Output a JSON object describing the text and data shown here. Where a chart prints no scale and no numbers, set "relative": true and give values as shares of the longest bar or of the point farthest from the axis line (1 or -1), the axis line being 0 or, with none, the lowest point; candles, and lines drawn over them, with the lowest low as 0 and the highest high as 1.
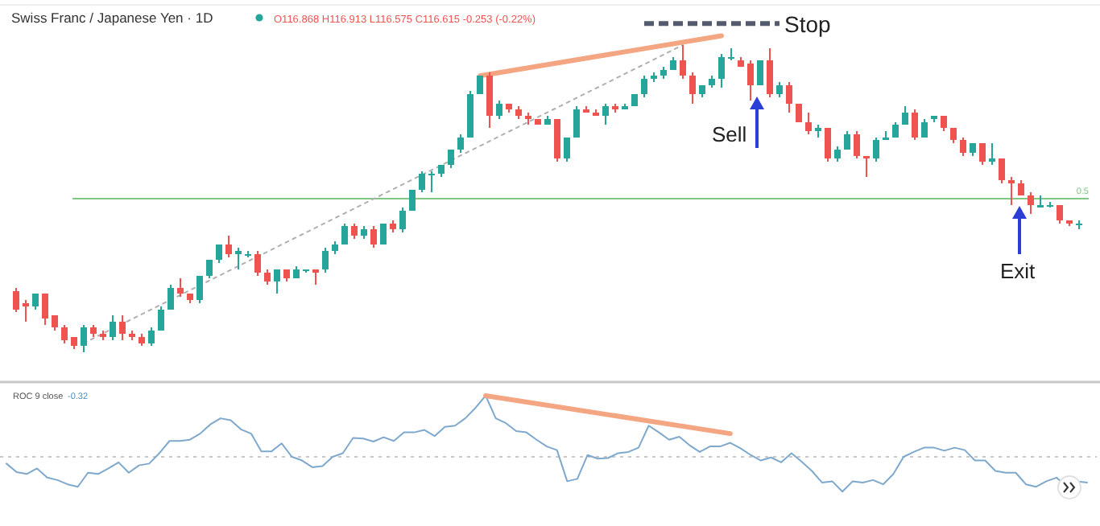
{
  "chart_data": [
    {
      "type": "candlestick",
      "title": "Swiss Franc / Japanese Yen · 1D",
      "subtitle": "O116.868 H116.913 L116.575 C116.615 -0.253 (-0.22%)",
      "relative": true,
      "categories": [
        null,
        null,
        null,
        null,
        null,
        null,
        null,
        null,
        null,
        null,
        null,
        null,
        null,
        null,
        null,
        null,
        null,
        null,
        null,
        null,
        null,
        null,
        null,
        null,
        null,
        null,
        null,
        null,
        null,
        null,
        null,
        null,
        null,
        null,
        null,
        null,
        null,
        null,
        null,
        null,
        null,
        null,
        null,
        null,
        null,
        null,
        null,
        null,
        null,
        null,
        null,
        null,
        null,
        null,
        null,
        null,
        null,
        null,
        null,
        null,
        null,
        null,
        null,
        null,
        null,
        null,
        null,
        null,
        null,
        null,
        null,
        null,
        null,
        null,
        null,
        null,
        null,
        null,
        null,
        null,
        null,
        null,
        null,
        null,
        null,
        null,
        null,
        null,
        null,
        null,
        null,
        null,
        null,
        null,
        null,
        null,
        null,
        null,
        null,
        null,
        null,
        null,
        null,
        null,
        null,
        null,
        null,
        null,
        null,
        null,
        null
      ],
      "ohlc": [
        [
          0.2,
          0.21,
          0.13,
          0.14
        ],
        [
          0.16,
          0.17,
          0.1,
          0.15
        ],
        [
          0.15,
          0.19,
          0.14,
          0.19
        ],
        [
          0.19,
          0.19,
          0.09,
          0.11
        ],
        [
          0.12,
          0.12,
          0.07,
          0.08
        ],
        [
          0.08,
          0.09,
          0.03,
          0.04
        ],
        [
          0.05,
          0.05,
          0.01,
          0.02
        ],
        [
          0.02,
          0.09,
          0,
          0.08
        ],
        [
          0.08,
          0.09,
          0.05,
          0.06
        ],
        [
          0.06,
          0.07,
          0.04,
          0.05
        ],
        [
          0.05,
          0.12,
          0.04,
          0.1
        ],
        [
          0.1,
          0.12,
          0.04,
          0.06
        ],
        [
          0.06,
          0.07,
          0.04,
          0.05
        ],
        [
          0.05,
          0.06,
          0.02,
          0.03
        ],
        [
          0.03,
          0.08,
          0.02,
          0.07
        ],
        [
          0.07,
          0.15,
          0.07,
          0.14
        ],
        [
          0.14,
          0.22,
          0.14,
          0.21
        ],
        [
          0.21,
          0.24,
          0.18,
          0.19
        ],
        [
          0.19,
          0.19,
          0.16,
          0.17
        ],
        [
          0.17,
          0.25,
          0.16,
          0.25
        ],
        [
          0.25,
          0.3,
          0.24,
          0.3
        ],
        [
          0.3,
          0.35,
          0.29,
          0.35
        ],
        [
          0.35,
          0.38,
          0.31,
          0.32
        ],
        [
          0.32,
          0.34,
          0.27,
          0.33
        ],
        [
          0.32,
          0.33,
          0.31,
          0.32
        ],
        [
          0.32,
          0.33,
          0.25,
          0.26
        ],
        [
          0.26,
          0.27,
          0.22,
          0.23
        ],
        [
          0.23,
          0.27,
          0.19,
          0.27
        ],
        [
          0.27,
          0.27,
          0.23,
          0.24
        ],
        [
          0.24,
          0.28,
          0.24,
          0.27
        ],
        [
          0.27,
          0.27,
          0.26,
          0.27
        ],
        [
          0.27,
          0.27,
          0.22,
          0.26
        ],
        [
          0.27,
          0.34,
          0.26,
          0.33
        ],
        [
          0.33,
          0.36,
          0.32,
          0.35
        ],
        [
          0.35,
          0.42,
          0.35,
          0.41
        ],
        [
          0.41,
          0.42,
          0.37,
          0.38
        ],
        [
          0.38,
          0.41,
          0.37,
          0.4
        ],
        [
          0.4,
          0.41,
          0.34,
          0.35
        ],
        [
          0.35,
          0.42,
          0.35,
          0.42
        ],
        [
          0.42,
          0.43,
          0.39,
          0.4
        ],
        [
          0.4,
          0.47,
          0.39,
          0.46
        ],
        [
          0.46,
          0.53,
          0.46,
          0.53
        ],
        [
          0.53,
          0.59,
          0.52,
          0.58
        ],
        [
          0.58,
          0.59,
          0.52,
          0.58
        ],
        [
          0.58,
          0.61,
          0.57,
          0.61
        ],
        [
          0.61,
          0.66,
          0.6,
          0.66
        ],
        [
          0.66,
          0.71,
          0.65,
          0.7
        ],
        [
          0.7,
          0.85,
          0.7,
          0.84
        ],
        [
          0.84,
          0.9,
          0.84,
          0.9
        ],
        [
          0.9,
          0.91,
          0.73,
          0.77
        ],
        [
          0.77,
          0.82,
          0.76,
          0.81
        ],
        [
          0.81,
          0.81,
          0.78,
          0.79
        ],
        [
          0.79,
          0.8,
          0.76,
          0.77
        ],
        [
          0.77,
          0.78,
          0.74,
          0.76
        ],
        [
          0.76,
          0.76,
          0.74,
          0.74
        ],
        [
          0.74,
          0.77,
          0.74,
          0.76
        ],
        [
          0.76,
          0.76,
          0.62,
          0.63
        ],
        [
          0.63,
          0.7,
          0.62,
          0.7
        ],
        [
          0.7,
          0.8,
          0.7,
          0.79
        ],
        [
          0.79,
          0.8,
          0.78,
          0.78
        ],
        [
          0.78,
          0.79,
          0.77,
          0.77
        ],
        [
          0.77,
          0.81,
          0.74,
          0.8
        ],
        [
          0.8,
          0.81,
          0.78,
          0.79
        ],
        [
          0.79,
          0.81,
          0.79,
          0.8
        ],
        [
          0.8,
          0.84,
          0.8,
          0.84
        ],
        [
          0.84,
          0.9,
          0.83,
          0.89
        ],
        [
          0.89,
          0.91,
          0.88,
          0.9
        ],
        [
          0.9,
          0.93,
          0.89,
          0.92
        ],
        [
          0.92,
          0.96,
          0.92,
          0.95
        ],
        [
          0.95,
          1,
          0.89,
          0.9
        ],
        [
          0.9,
          0.91,
          0.81,
          0.84
        ],
        [
          0.84,
          0.87,
          0.83,
          0.87
        ],
        [
          0.87,
          0.9,
          0.86,
          0.89
        ],
        [
          0.89,
          0.97,
          0.86,
          0.96
        ],
        [
          0.96,
          0.99,
          0.95,
          0.96
        ],
        [
          0.95,
          0.96,
          0.93,
          0.93
        ],
        [
          0.94,
          0.95,
          0.82,
          0.87
        ],
        [
          0.87,
          0.95,
          0.87,
          0.95
        ],
        [
          0.95,
          0.99,
          0.83,
          0.84
        ],
        [
          0.84,
          0.88,
          0.83,
          0.87
        ],
        [
          0.87,
          0.88,
          0.78,
          0.81
        ],
        [
          0.81,
          0.81,
          0.75,
          0.75
        ],
        [
          0.75,
          0.78,
          0.71,
          0.72
        ],
        [
          0.72,
          0.74,
          0.7,
          0.73
        ],
        [
          0.73,
          0.73,
          0.62,
          0.63
        ],
        [
          0.63,
          0.67,
          0.62,
          0.66
        ],
        [
          0.66,
          0.72,
          0.66,
          0.71
        ],
        [
          0.71,
          0.72,
          0.63,
          0.64
        ],
        [
          0.64,
          0.64,
          0.57,
          0.63
        ],
        [
          0.63,
          0.7,
          0.62,
          0.69
        ],
        [
          0.69,
          0.72,
          0.69,
          0.7
        ],
        [
          0.7,
          0.75,
          0.7,
          0.74
        ],
        [
          0.74,
          0.8,
          0.74,
          0.78
        ],
        [
          0.78,
          0.79,
          0.69,
          0.7
        ],
        [
          0.7,
          0.76,
          0.7,
          0.75
        ],
        [
          0.76,
          0.77,
          0.75,
          0.77
        ],
        [
          0.77,
          0.77,
          0.72,
          0.73
        ],
        [
          0.73,
          0.73,
          0.68,
          0.69
        ],
        [
          0.69,
          0.7,
          0.64,
          0.65
        ],
        [
          0.65,
          0.68,
          0.64,
          0.68
        ],
        [
          0.68,
          0.68,
          0.61,
          0.62
        ],
        [
          0.62,
          0.68,
          0.61,
          0.63
        ],
        [
          0.63,
          0.63,
          0.55,
          0.56
        ],
        [
          0.56,
          0.57,
          0.48,
          0.55
        ],
        [
          0.55,
          0.56,
          0.51,
          0.51
        ],
        [
          0.51,
          0.52,
          0.45,
          0.48
        ],
        [
          0.47,
          0.51,
          0.47,
          0.48
        ],
        [
          0.48,
          0.49,
          0.47,
          0.48
        ],
        [
          0.48,
          0.48,
          0.42,
          0.43
        ],
        [
          0.43,
          0.43,
          0.41,
          0.42
        ],
        [
          0.42,
          0.43,
          0.4,
          0.42
        ]
      ],
      "series": [
        {
          "type": "line",
          "color": "#b0b0b0",
          "line_style": "dotted",
          "values": [
            null,
            null,
            null,
            null,
            null,
            null,
            null,
            0.03,
            null,
            null,
            null,
            null,
            null,
            null,
            null,
            null,
            null,
            null,
            null,
            null,
            null,
            null,
            null,
            null,
            null,
            null,
            null,
            null,
            null,
            null,
            null,
            null,
            null,
            null,
            null,
            null,
            null,
            null,
            null,
            null,
            null,
            null,
            null,
            null,
            null,
            null,
            null,
            null,
            null,
            null,
            null,
            null,
            null,
            null,
            null,
            null,
            null,
            null,
            null,
            null,
            null,
            null,
            null,
            null,
            null,
            null,
            null,
            null,
            null,
            1.0,
            null,
            null,
            null,
            null,
            null,
            null,
            null,
            null,
            null,
            null,
            null,
            null,
            null,
            null,
            null,
            null,
            null,
            null,
            null,
            null,
            null,
            null,
            null,
            null,
            null,
            null,
            null,
            null,
            null,
            null,
            null,
            null,
            null,
            null,
            null,
            null,
            null,
            null,
            null,
            null,
            null
          ]
        }
      ],
      "ref_lines": [
        {
          "axis": "y",
          "value": 0.5,
          "label": "0.5",
          "color": "#81c784"
        }
      ],
      "annotations": [
        "Stop",
        "Sell",
        "Exit"
      ]
    },
    {
      "type": "line",
      "title": "ROC 9 close",
      "relative": true,
      "categories": [
        null,
        null,
        null,
        null,
        null,
        null,
        null,
        null,
        null,
        null,
        null,
        null,
        null,
        null,
        null,
        null,
        null,
        null,
        null,
        null,
        null,
        null,
        null,
        null,
        null,
        null,
        null,
        null,
        null,
        null,
        null,
        null,
        null,
        null,
        null,
        null,
        null,
        null,
        null,
        null,
        null,
        null,
        null,
        null,
        null,
        null,
        null,
        null,
        null,
        null,
        null,
        null,
        null,
        null,
        null,
        null,
        null,
        null,
        null,
        null,
        null,
        null,
        null,
        null,
        null,
        null,
        null,
        null,
        null,
        null,
        null,
        null,
        null,
        null,
        null,
        null,
        null,
        null,
        null,
        null,
        null,
        null,
        null,
        null,
        null,
        null,
        null,
        null,
        null,
        null,
        null,
        null,
        null,
        null,
        null,
        null,
        null,
        null,
        null,
        null,
        null,
        null,
        null,
        null,
        null,
        null,
        null
      ],
      "series": [
        {
          "color": "#7fa9cc",
          "values": [
            -0.11,
            -0.25,
            -0.28,
            -0.19,
            -0.34,
            -0.38,
            -0.45,
            -0.49,
            -0.26,
            -0.28,
            -0.19,
            -0.09,
            -0.26,
            -0.14,
            -0.11,
            0.06,
            0.26,
            0.26,
            0.28,
            0.38,
            0.53,
            0.63,
            0.6,
            0.45,
            0.38,
            0.09,
            0.09,
            0.22,
            0,
            -0.06,
            -0.17,
            -0.15,
            0,
            0.06,
            0.31,
            0.3,
            0.25,
            0.32,
            0.26,
            0.4,
            0.4,
            0.44,
            0.34,
            0.49,
            0.51,
            0.63,
            0.8,
            1,
            0.63,
            0.55,
            0.42,
            0.4,
            0.28,
            0.17,
            0.11,
            -0.4,
            -0.36,
            0.03,
            -0.03,
            -0.02,
            0.06,
            0.08,
            0.15,
            0.51,
            0.4,
            0.28,
            0.33,
            0.19,
            0.08,
            0.17,
            0.17,
            0.23,
            0.14,
            0.03,
            -0.06,
            -0.01,
            -0.09,
            0.06,
            -0.08,
            -0.23,
            -0.42,
            -0.4,
            -0.57,
            -0.4,
            -0.42,
            -0.38,
            -0.45,
            -0.28,
            0,
            0.08,
            0.15,
            0.15,
            0.1,
            0.15,
            0.11,
            -0.06,
            -0.06,
            -0.23,
            -0.26,
            -0.26,
            -0.45,
            -0.49,
            -0.4,
            -0.34,
            -0.49,
            -0.4,
            -0.42
          ]
        },
        {
          "type": "line",
          "color": "#f4a582",
          "values": [
            null,
            null,
            null,
            null,
            null,
            null,
            null,
            null,
            null,
            null,
            null,
            null,
            null,
            null,
            null,
            null,
            null,
            null,
            null,
            null,
            null,
            null,
            null,
            null,
            null,
            null,
            null,
            null,
            null,
            null,
            null,
            null,
            null,
            null,
            null,
            null,
            null,
            null,
            null,
            null,
            null,
            null,
            null,
            null,
            null,
            null,
            null,
            1,
            null,
            null,
            null,
            null,
            null,
            null,
            null,
            null,
            null,
            null,
            null,
            null,
            null,
            null,
            null,
            null,
            null,
            null,
            null,
            null,
            null,
            null,
            null,
            0.38,
            null,
            null,
            null,
            null,
            null,
            null,
            null,
            null,
            null,
            null,
            null,
            null,
            null,
            null,
            null,
            null,
            null,
            null,
            null,
            null,
            null,
            null,
            null,
            null,
            null,
            null,
            null,
            null,
            null,
            null,
            null,
            null,
            null,
            null,
            null
          ]
        }
      ],
      "ref_lines": [
        {
          "axis": "y",
          "value": 0,
          "color": "#c8c8c8",
          "line_style": "dotted"
        }
      ],
      "annotations": [
        "-0.32"
      ]
    }
  ]
}
